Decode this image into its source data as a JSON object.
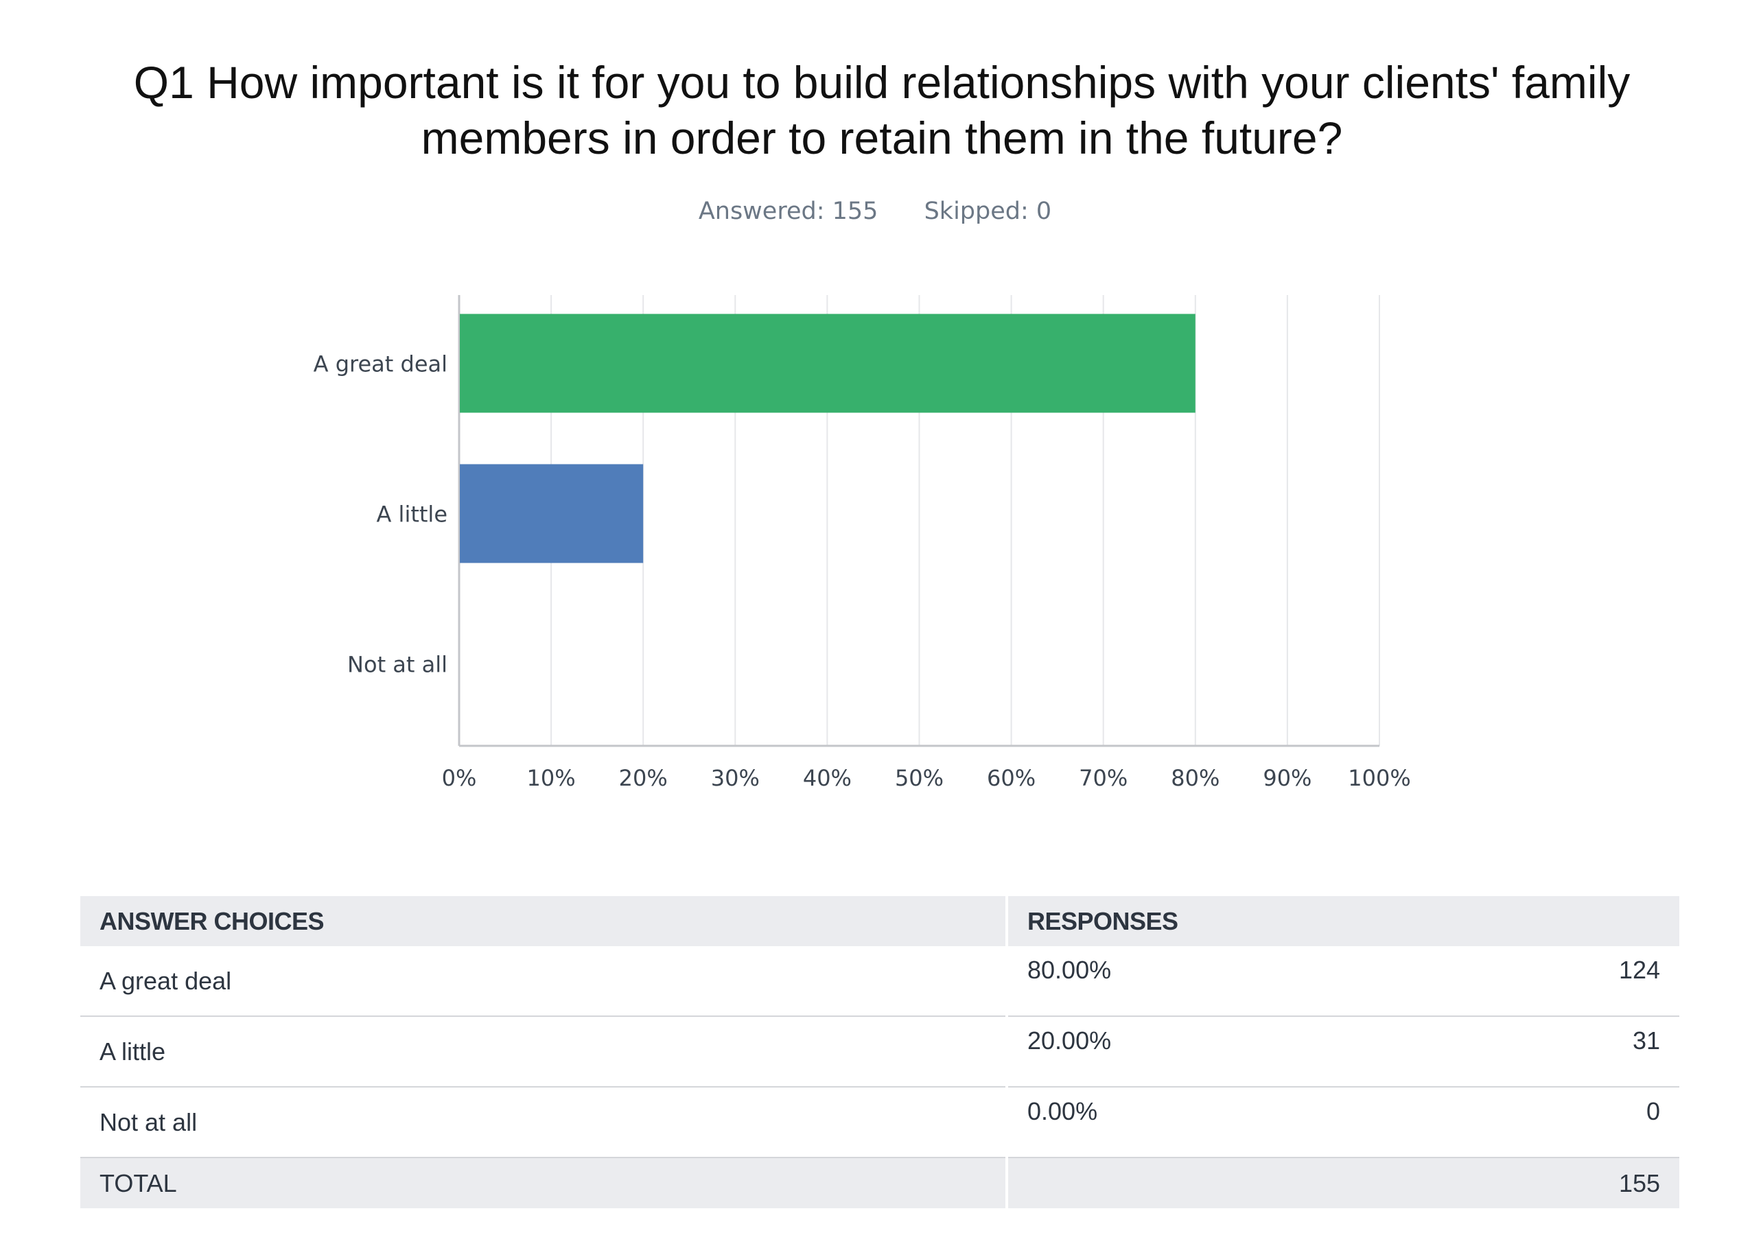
{
  "header": {
    "title": "Q1 How important is it for you to build relationships with your clients' family members in order to retain them in the future?",
    "answered": "Answered: 155",
    "skipped": "Skipped: 0"
  },
  "chart_data": {
    "type": "bar",
    "orientation": "horizontal",
    "categories": [
      "A great deal",
      "A little",
      "Not at all"
    ],
    "values": [
      80,
      20,
      0
    ],
    "colors": [
      "#37b06c",
      "#507dba",
      "#e57373"
    ],
    "xlim": [
      0,
      100
    ],
    "xticks": [
      "0%",
      "10%",
      "20%",
      "30%",
      "40%",
      "50%",
      "60%",
      "70%",
      "80%",
      "90%",
      "100%"
    ],
    "grid": true
  },
  "table": {
    "headers": [
      "ANSWER CHOICES",
      "RESPONSES"
    ],
    "rows": [
      {
        "choice": "A great deal",
        "percent": "80.00%",
        "count": "124"
      },
      {
        "choice": "A little",
        "percent": "20.00%",
        "count": "31"
      },
      {
        "choice": "Not at all",
        "percent": "0.00%",
        "count": "0"
      }
    ],
    "total_label": "TOTAL",
    "total_count": "155"
  }
}
